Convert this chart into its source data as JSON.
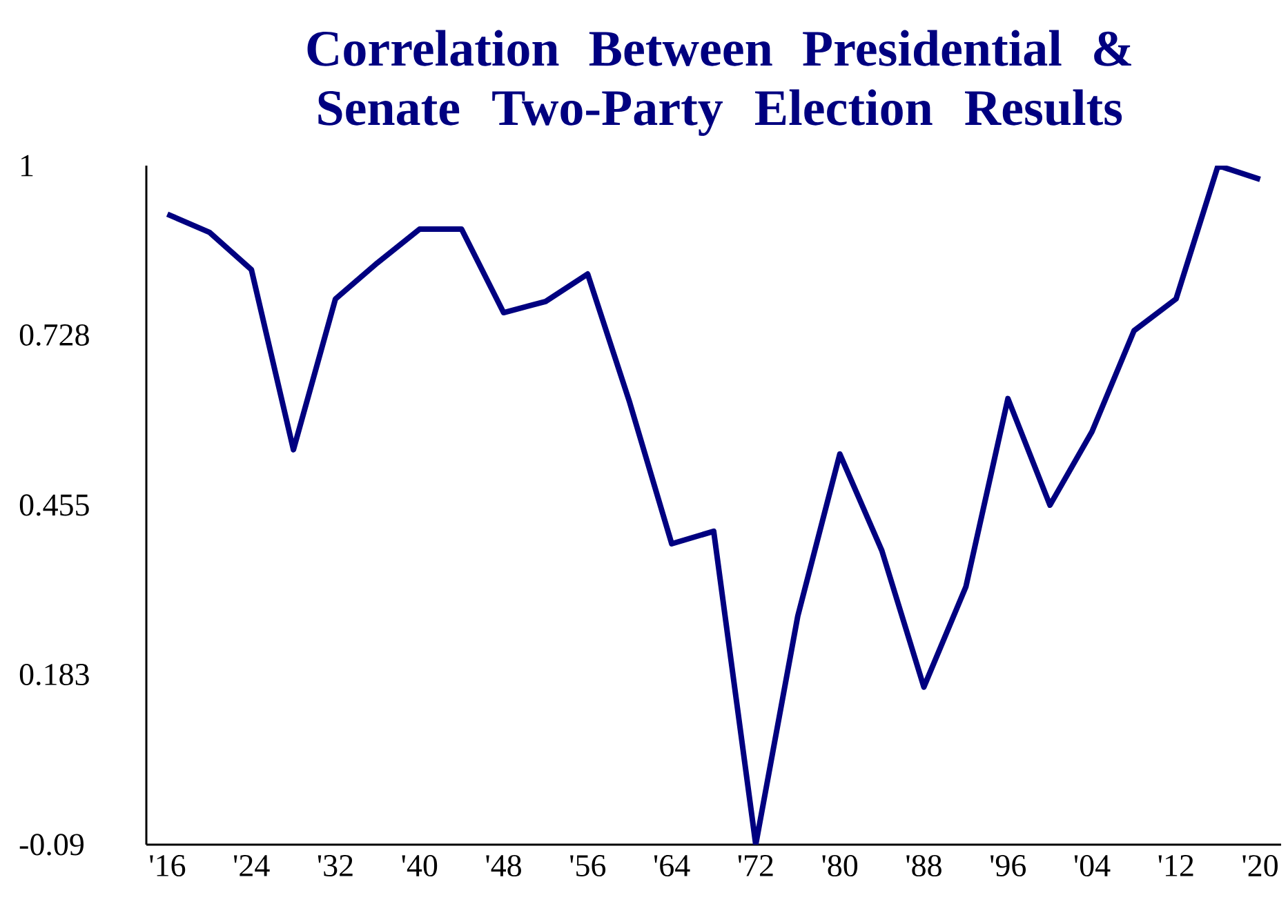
{
  "chart_data": {
    "type": "line",
    "title": "Correlation Between Presidential & Senate Two-Party Election Results",
    "x": [
      1916,
      1920,
      1924,
      1928,
      1932,
      1936,
      1940,
      1944,
      1948,
      1952,
      1956,
      1960,
      1964,
      1968,
      1972,
      1976,
      1980,
      1984,
      1988,
      1992,
      1996,
      2000,
      2004,
      2008,
      2012,
      2016,
      2020
    ],
    "series": [
      {
        "color": "#000080",
        "values": [
          0.922,
          0.893,
          0.833,
          0.544,
          0.786,
          0.844,
          0.898,
          0.898,
          0.764,
          0.782,
          0.826,
          0.62,
          0.393,
          0.413,
          -0.09,
          0.277,
          0.537,
          0.382,
          0.163,
          0.324,
          0.626,
          0.455,
          0.573,
          0.735,
          0.786,
          1.0,
          0.978
        ]
      }
    ],
    "xlim": [
      1914,
      2022
    ],
    "xticks": [
      {
        "value": 1916,
        "label": "'16"
      },
      {
        "value": 1924,
        "label": "'24"
      },
      {
        "value": 1932,
        "label": "'32"
      },
      {
        "value": 1940,
        "label": "'40"
      },
      {
        "value": 1948,
        "label": "'48"
      },
      {
        "value": 1956,
        "label": "'56"
      },
      {
        "value": 1964,
        "label": "'64"
      },
      {
        "value": 1972,
        "label": "'72"
      },
      {
        "value": 1980,
        "label": "'80"
      },
      {
        "value": 1988,
        "label": "'88"
      },
      {
        "value": 1996,
        "label": "'96"
      },
      {
        "value": 2004,
        "label": "'04"
      },
      {
        "value": 2012,
        "label": "'12"
      },
      {
        "value": 2020,
        "label": "'20"
      }
    ],
    "ylim": [
      -0.09,
      1
    ],
    "yticks": [
      -0.09,
      0.183,
      0.455,
      0.728,
      1
    ],
    "marker": "none",
    "line_style": "solid"
  }
}
